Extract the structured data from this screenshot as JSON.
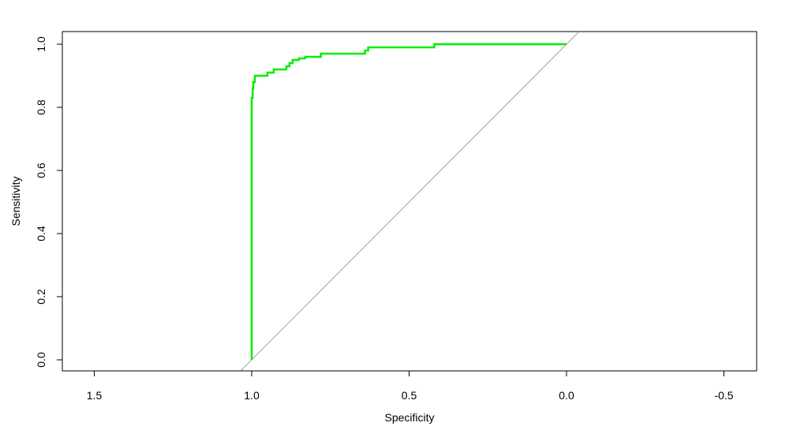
{
  "chart_data": {
    "type": "line",
    "title": "",
    "xlabel": "Specificity",
    "ylabel": "Sensitivity",
    "xlim": [
      1.5,
      -0.5
    ],
    "ylim": [
      0.0,
      1.0
    ],
    "x_reversed": true,
    "grid": false,
    "legend": "none",
    "x_ticks": [
      1.5,
      1.0,
      0.5,
      0.0,
      -0.5
    ],
    "x_tick_labels": [
      "1.5",
      "1.0",
      "0.5",
      "0.0",
      "-0.5"
    ],
    "y_ticks": [
      0.0,
      0.2,
      0.4,
      0.6,
      0.8,
      1.0
    ],
    "y_tick_labels": [
      "0.0",
      "0.2",
      "0.4",
      "0.6",
      "0.8",
      "1.0"
    ],
    "series": [
      {
        "color": "#00ee00",
        "x": [
          1.0,
          1.0,
          0.997,
          0.997,
          0.995,
          0.995,
          0.99,
          0.99,
          0.95,
          0.95,
          0.93,
          0.93,
          0.89,
          0.89,
          0.88,
          0.88,
          0.87,
          0.87,
          0.85,
          0.85,
          0.83,
          0.83,
          0.78,
          0.78,
          0.64,
          0.64,
          0.63,
          0.63,
          0.42,
          0.42,
          0.0
        ],
        "y": [
          0.0,
          0.83,
          0.83,
          0.86,
          0.86,
          0.88,
          0.88,
          0.9,
          0.9,
          0.91,
          0.91,
          0.92,
          0.92,
          0.93,
          0.93,
          0.94,
          0.94,
          0.95,
          0.95,
          0.955,
          0.955,
          0.96,
          0.96,
          0.97,
          0.97,
          0.98,
          0.98,
          0.99,
          0.99,
          1.0,
          1.0
        ]
      }
    ],
    "reference_line": {
      "x": [
        1.04,
        -0.04
      ],
      "y": [
        -0.04,
        1.04
      ],
      "color": "#a0a0a0"
    }
  }
}
